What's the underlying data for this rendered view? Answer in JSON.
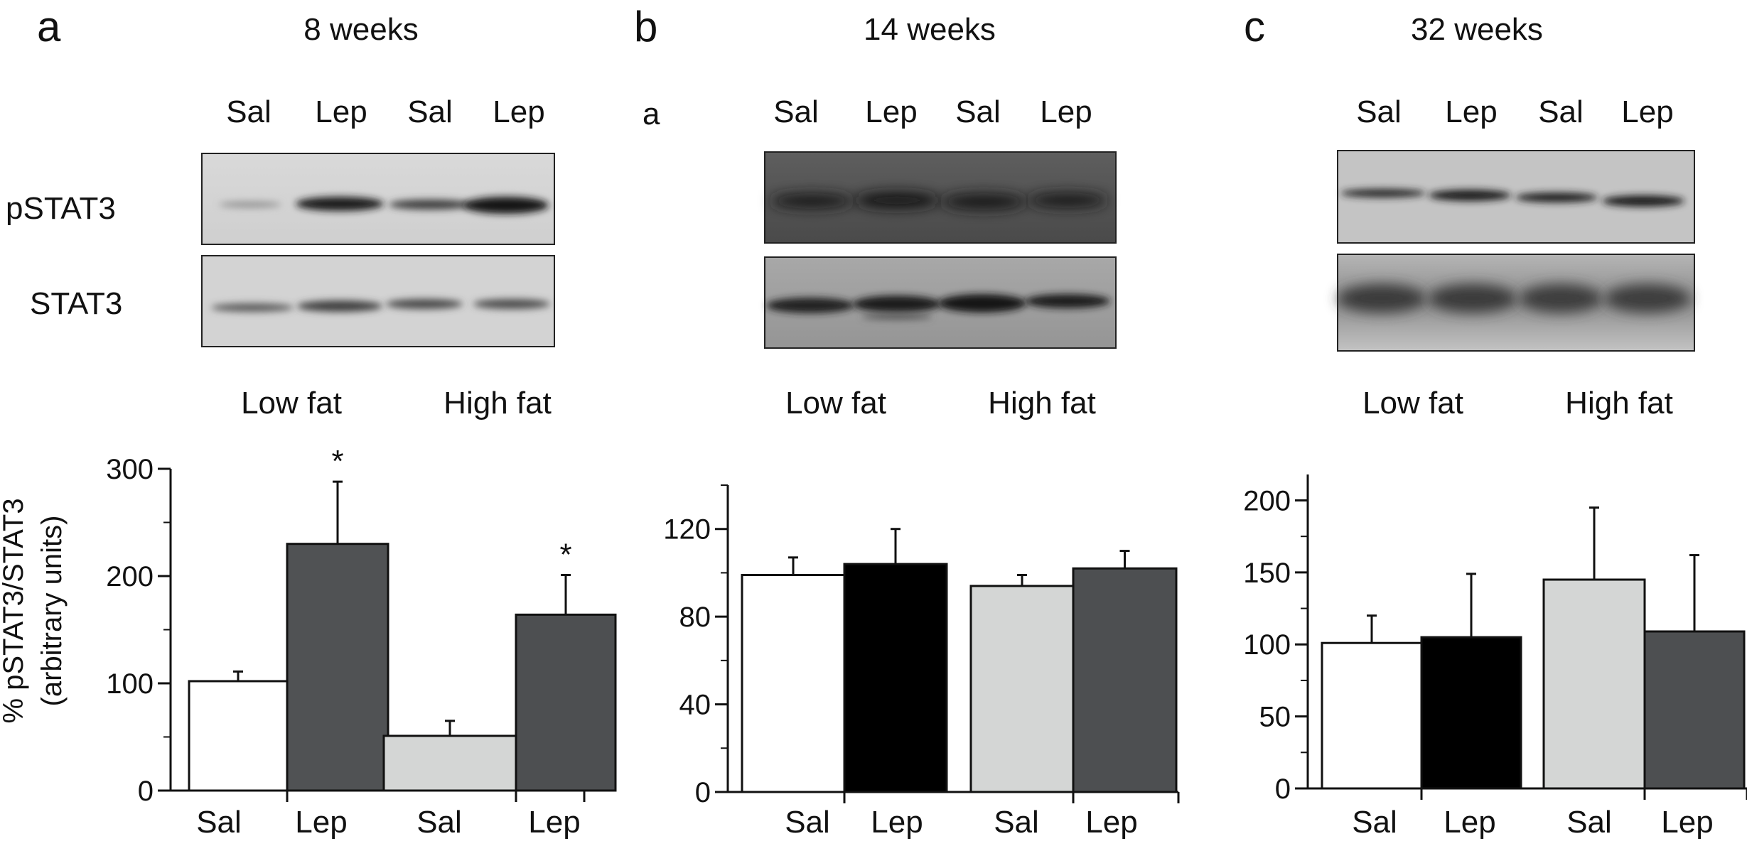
{
  "panels": [
    {
      "letter": "a",
      "title": "8 weeks",
      "sublabel": "",
      "lanes": [
        "Sal",
        "Lep",
        "Sal",
        "Lep"
      ],
      "blot_rows": [
        "pSTAT3",
        "STAT3"
      ],
      "groups": [
        "Low fat",
        "High fat"
      ]
    },
    {
      "letter": "b",
      "title": "14 weeks",
      "sublabel": "a",
      "lanes": [
        "Sal",
        "Lep",
        "Sal",
        "Lep"
      ],
      "blot_rows": [],
      "groups": [
        "Low fat",
        "High fat"
      ]
    },
    {
      "letter": "c",
      "title": "32 weeks",
      "sublabel": "",
      "lanes": [
        "Sal",
        "Lep",
        "Sal",
        "Lep"
      ],
      "blot_rows": [],
      "groups": [
        "Low fat",
        "High fat"
      ]
    }
  ],
  "colors": {
    "sal_lowfat": "#ffffff",
    "lep_lowfat_a": "#505254",
    "lep_lowfat_bc": "#000000",
    "sal_highfat": "#d4d6d5",
    "lep_highfat": "#4d4f51"
  },
  "chart_data": [
    {
      "type": "bar",
      "categories": [
        "Sal",
        "Lep",
        "Sal",
        "Lep"
      ],
      "series": [
        {
          "values": [
            102,
            230,
            51,
            164
          ],
          "errors": [
            9,
            58,
            14,
            37
          ]
        }
      ],
      "bar_colors": [
        "#ffffff",
        "#505254",
        "#d4d6d5",
        "#4d4f51"
      ],
      "annotations": [
        "",
        "*",
        "",
        "*"
      ],
      "ylabel": "% pSTAT3/STAT3\n(arbitrary units)",
      "ylabel_lines": [
        "% pSTAT3/STAT3",
        "(arbitrary units)"
      ],
      "ylim": [
        0,
        300
      ],
      "yticks": [
        0,
        100,
        200,
        300
      ],
      "minor_step": 50
    },
    {
      "type": "bar",
      "categories": [
        "Sal",
        "Lep",
        "Sal",
        "Lep"
      ],
      "series": [
        {
          "values": [
            99,
            104,
            94,
            102
          ],
          "errors": [
            8,
            16,
            5,
            8
          ]
        }
      ],
      "bar_colors": [
        "#ffffff",
        "#000000",
        "#d4d6d5",
        "#4d4f51"
      ],
      "annotations": [
        "",
        "",
        "",
        ""
      ],
      "ylabel": "",
      "ylim": [
        0,
        140
      ],
      "yticks": [
        0,
        40,
        80,
        120
      ],
      "minor_step": 20
    },
    {
      "type": "bar",
      "categories": [
        "Sal",
        "Lep",
        "Sal",
        "Lep"
      ],
      "series": [
        {
          "values": [
            101,
            105,
            145,
            109
          ],
          "errors": [
            19,
            44,
            50,
            53
          ]
        }
      ],
      "bar_colors": [
        "#ffffff",
        "#000000",
        "#d4d6d5",
        "#4d4f51"
      ],
      "annotations": [
        "",
        "",
        "",
        ""
      ],
      "ylabel": "",
      "ylim": [
        0,
        218
      ],
      "yticks": [
        0,
        50,
        100,
        150,
        200
      ],
      "minor_step": 25
    }
  ]
}
